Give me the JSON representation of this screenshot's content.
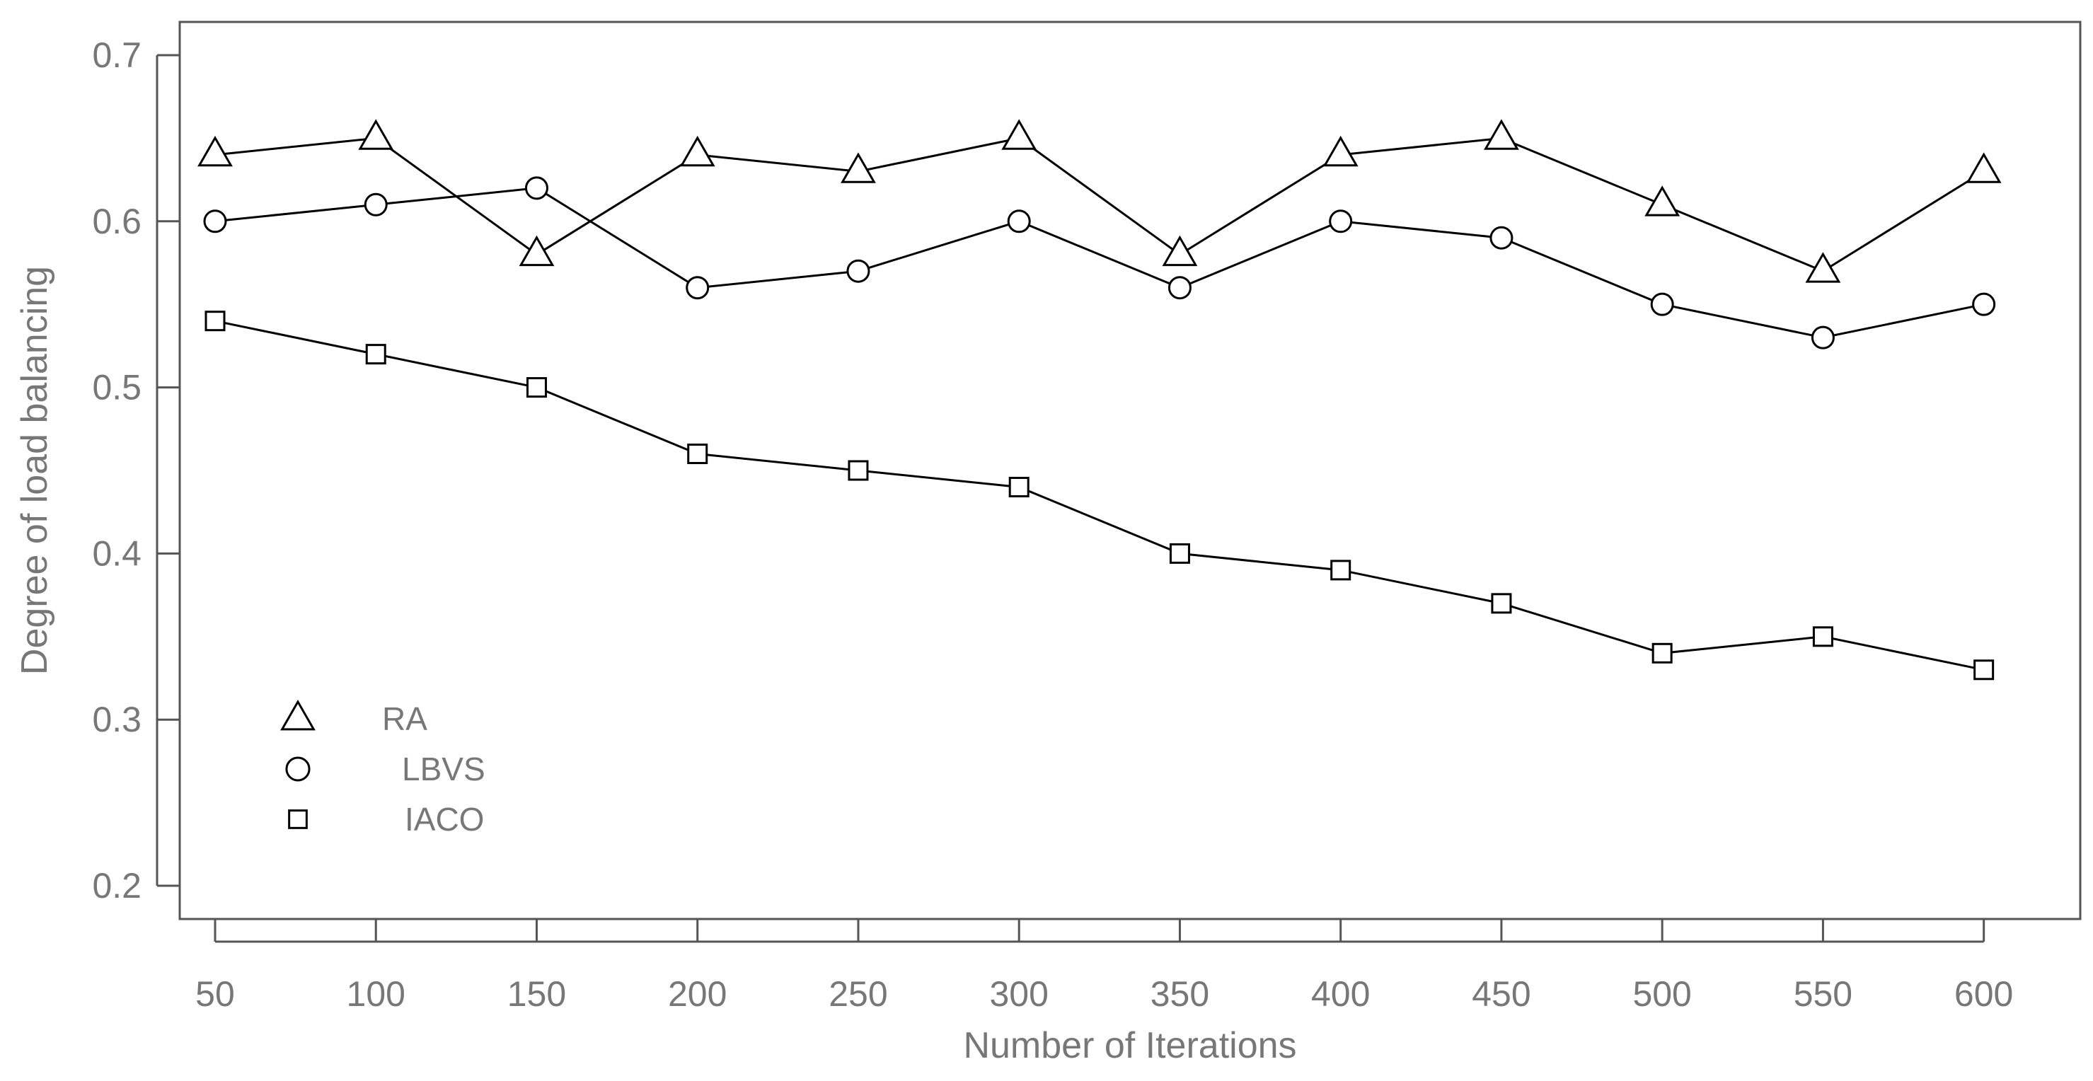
{
  "chart_data": {
    "type": "line",
    "title": "",
    "xlabel": "Number of Iterations",
    "ylabel": "Degree of load balancing",
    "x": [
      50,
      100,
      150,
      200,
      250,
      300,
      350,
      400,
      450,
      500,
      550,
      600
    ],
    "xlim": [
      39,
      630
    ],
    "ylim": [
      0.18,
      0.72
    ],
    "x_ticks": [
      "50",
      "100",
      "150",
      "200",
      "250",
      "300",
      "350",
      "400",
      "450",
      "500",
      "550",
      "600"
    ],
    "y_ticks": [
      "0.2",
      "0.3",
      "0.4",
      "0.5",
      "0.6",
      "0.7"
    ],
    "y_tick_values": [
      0.2,
      0.3,
      0.4,
      0.5,
      0.6,
      0.7
    ],
    "grid": false,
    "legend_position": "bottom-left",
    "series": [
      {
        "name": "RA",
        "marker": "triangle",
        "values": [
          0.64,
          0.65,
          0.58,
          0.64,
          0.63,
          0.65,
          0.58,
          0.64,
          0.65,
          0.61,
          0.57,
          0.63
        ]
      },
      {
        "name": "LBVS",
        "marker": "circle",
        "values": [
          0.6,
          0.61,
          0.62,
          0.56,
          0.57,
          0.6,
          0.56,
          0.6,
          0.59,
          0.55,
          0.53,
          0.55
        ]
      },
      {
        "name": "IACO",
        "marker": "square",
        "values": [
          0.54,
          0.52,
          0.5,
          0.46,
          0.45,
          0.44,
          0.4,
          0.39,
          0.37,
          0.34,
          0.35,
          0.33
        ]
      }
    ],
    "colors": {
      "line": "#000000",
      "text": "#777777",
      "frame": "#555555",
      "marker_fill": "#ffffff"
    }
  }
}
